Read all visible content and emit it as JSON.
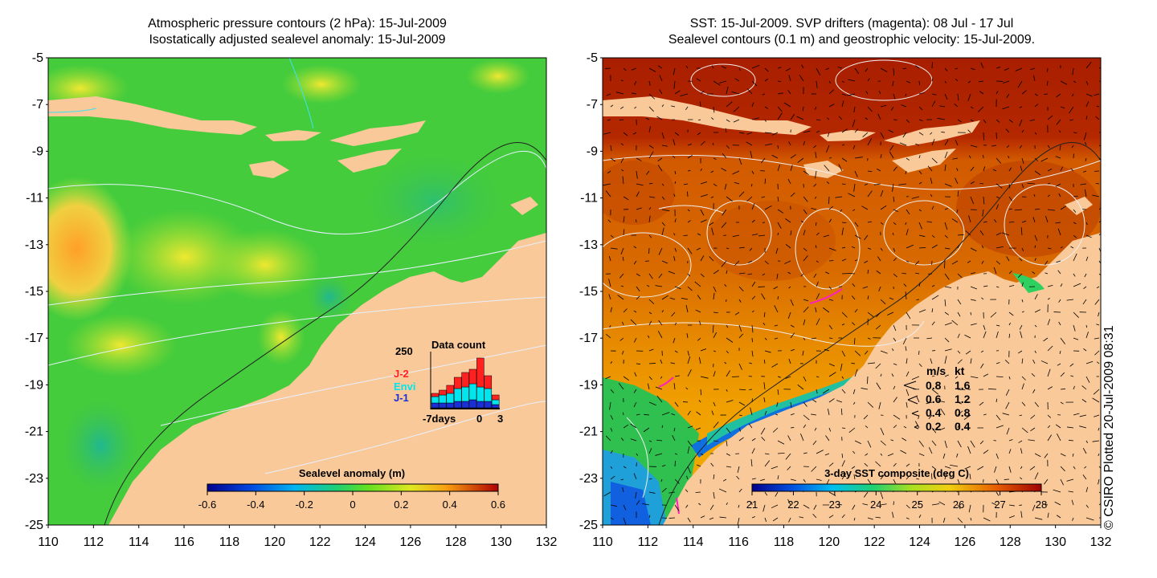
{
  "left_panel": {
    "title_line1": "Atmospheric pressure contours (2 hPa): 15-Jul-2009",
    "title_line2": "Isostatically adjusted sealevel anomaly: 15-Jul-2009",
    "colorbar": {
      "label": "Sealevel anomaly (m)",
      "ticks": [
        "-0.6",
        "-0.4",
        "-0.2",
        "0",
        "0.2",
        "0.4",
        "0.6"
      ]
    },
    "data_count": {
      "title": "Data count",
      "y_max_label": "250",
      "x_labels": [
        "-7days",
        "0",
        "3"
      ],
      "legend": [
        {
          "label": "J-2",
          "color": "#ff2020"
        },
        {
          "label": "Envi",
          "color": "#00e5ee"
        },
        {
          "label": "J-1",
          "color": "#1a2fd6"
        }
      ]
    }
  },
  "right_panel": {
    "title_line1": "SST: 15-Jul-2009. SVP drifters (magenta): 08 Jul - 17 Jul",
    "title_line2": "Sealevel contours (0.1 m) and geostrophic velocity: 15-Jul-2009.",
    "colorbar": {
      "label": "3-day SST composite (deg C)",
      "ticks": [
        "21",
        "22",
        "23",
        "24",
        "25",
        "26",
        "27",
        "28"
      ]
    },
    "velocity_legend": {
      "header_ms": "m/s",
      "header_kt": "kt",
      "rows": [
        {
          "ms": "0.8",
          "kt": "1.6"
        },
        {
          "ms": "0.6",
          "kt": "1.2"
        },
        {
          "ms": "0.4",
          "kt": "0.8"
        },
        {
          "ms": "0.2",
          "kt": "0.4"
        }
      ]
    }
  },
  "axes": {
    "lat_ticks": [
      "-5",
      "-7",
      "-9",
      "-11",
      "-13",
      "-15",
      "-17",
      "-19",
      "-21",
      "-23",
      "-25"
    ],
    "lon_ticks": [
      "110",
      "112",
      "114",
      "116",
      "118",
      "120",
      "122",
      "124",
      "126",
      "128",
      "130",
      "132"
    ]
  },
  "credit": "© CSIRO Plotted 20-Jul-2009 08:31",
  "colors": {
    "land": "#f9c99a",
    "sla_green": "#3cd23c",
    "sst_red": "#b42800",
    "sst_orange": "#e07800"
  }
}
